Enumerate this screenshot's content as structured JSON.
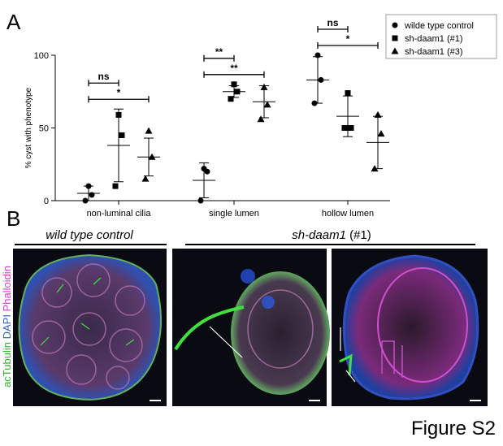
{
  "panel_a_label": "A",
  "panel_b_label": "B",
  "figure_label": "Figure S2",
  "chart_data": {
    "type": "dot",
    "ylabel": "% cyst with phenotype",
    "categories": [
      "non-luminal cilia",
      "single lumen",
      "hollow lumen"
    ],
    "ylim": [
      0,
      100
    ],
    "yticks": [
      0,
      50,
      100
    ],
    "legend": "upper right",
    "series": [
      {
        "name": "wilde type control",
        "marker": "circle",
        "color": "#000000",
        "points": [
          [
            10,
            4,
            0
          ],
          [
            22,
            20,
            0
          ],
          [
            100,
            83,
            67
          ]
        ],
        "means": [
          5,
          14,
          83
        ],
        "sd": [
          5,
          12,
          16
        ]
      },
      {
        "name": "sh-daam1 (#1)",
        "marker": "square",
        "color": "#000000",
        "points": [
          [
            59,
            45,
            10
          ],
          [
            80,
            75,
            70
          ],
          [
            74,
            50,
            50
          ]
        ],
        "means": [
          38,
          75,
          58
        ],
        "sd": [
          25,
          4,
          14
        ]
      },
      {
        "name": "sh-daam1 (#3)",
        "marker": "triangle",
        "color": "#000000",
        "points": [
          [
            48,
            30,
            15
          ],
          [
            78,
            66,
            56
          ],
          [
            59,
            46,
            22
          ]
        ],
        "means": [
          30,
          68,
          40
        ],
        "sd": [
          13,
          11,
          18
        ]
      }
    ],
    "significance": [
      {
        "category": 0,
        "from": 0,
        "to": 1,
        "label": "ns"
      },
      {
        "category": 0,
        "from": 0,
        "to": 2,
        "label": "*"
      },
      {
        "category": 1,
        "from": 0,
        "to": 1,
        "label": "**"
      },
      {
        "category": 1,
        "from": 0,
        "to": 2,
        "label": "**"
      },
      {
        "category": 2,
        "from": 0,
        "to": 1,
        "label": "ns"
      },
      {
        "category": 2,
        "from": 0,
        "to": 2,
        "label": "*"
      }
    ]
  },
  "panel_b": {
    "group_wt": "wild type control",
    "group_sh": "sh-daam1",
    "group_sh_suffix": " (#1)",
    "stain_1": "acTubulin",
    "stain_2": "DAPI",
    "stain_3": "Phalloidin"
  }
}
